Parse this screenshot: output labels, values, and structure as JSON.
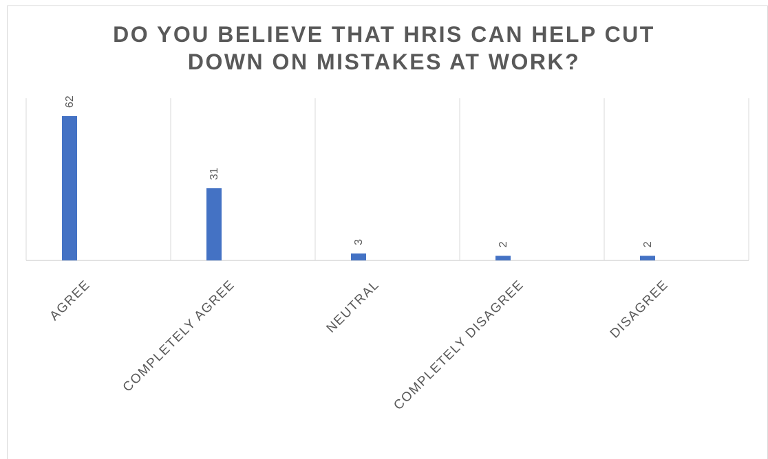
{
  "chart_data": {
    "type": "bar",
    "title_lines": [
      "DO YOU BELIEVE THAT HRIS CAN HELP CUT",
      "DOWN ON MISTAKES AT WORK?"
    ],
    "categories": [
      "AGREE",
      "COMPLETELY AGREE",
      "NEUTRAL",
      "COMPLETELY DISAGREE",
      "DISAGREE"
    ],
    "values": [
      62,
      31,
      3,
      2,
      2
    ],
    "data_labels": [
      "62",
      "31",
      "3",
      "2",
      "2"
    ],
    "xlabel": "",
    "ylabel": "",
    "ylim": [
      0,
      62
    ],
    "grid": "vertical category separators",
    "legend": "none",
    "bar_color": "#4472c4",
    "grid_color": "#d9d9d9",
    "label_color": "#595959"
  }
}
